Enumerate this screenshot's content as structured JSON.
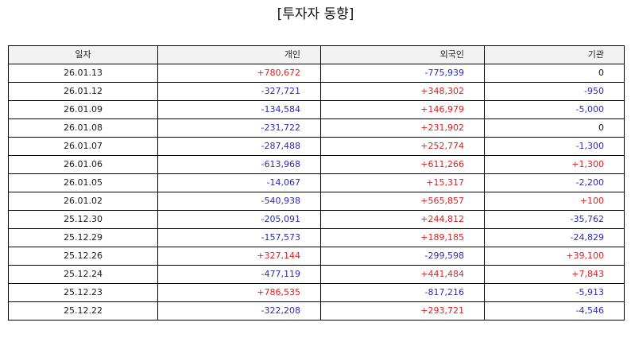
{
  "title": "[투자자 동향]",
  "table": {
    "headers": [
      "일자",
      "개인",
      "외국인",
      "기관"
    ],
    "rows": [
      {
        "date": "26.01.13",
        "individual": "+780,672",
        "foreign": "-775,939",
        "institution": "0"
      },
      {
        "date": "26.01.12",
        "individual": "-327,721",
        "foreign": "+348,302",
        "institution": "-950"
      },
      {
        "date": "26.01.09",
        "individual": "-134,584",
        "foreign": "+146,979",
        "institution": "-5,000"
      },
      {
        "date": "26.01.08",
        "individual": "-231,722",
        "foreign": "+231,902",
        "institution": "0"
      },
      {
        "date": "26.01.07",
        "individual": "-287,488",
        "foreign": "+252,774",
        "institution": "-1,300"
      },
      {
        "date": "26.01.06",
        "individual": "-613,968",
        "foreign": "+611,266",
        "institution": "+1,300"
      },
      {
        "date": "26.01.05",
        "individual": "-14,067",
        "foreign": "+15,317",
        "institution": "-2,200"
      },
      {
        "date": "26.01.02",
        "individual": "-540,938",
        "foreign": "+565,857",
        "institution": "+100"
      },
      {
        "date": "25.12.30",
        "individual": "-205,091",
        "foreign": "+244,812",
        "institution": "-35,762"
      },
      {
        "date": "25.12.29",
        "individual": "-157,573",
        "foreign": "+189,185",
        "institution": "-24,829"
      },
      {
        "date": "25.12.26",
        "individual": "+327,144",
        "foreign": "-299,598",
        "institution": "+39,100"
      },
      {
        "date": "25.12.24",
        "individual": "-477,119",
        "foreign": "+441,484",
        "institution": "+7,843"
      },
      {
        "date": "25.12.23",
        "individual": "+786,535",
        "foreign": "-817,216",
        "institution": "-5,913"
      },
      {
        "date": "25.12.22",
        "individual": "-322,208",
        "foreign": "+293,721",
        "institution": "-4,546"
      }
    ]
  },
  "colors": {
    "positive": "#e02020",
    "negative": "#2b2bb8",
    "neutral": "#111111",
    "header_bg": "#f2f2f2",
    "border": "#000000"
  }
}
